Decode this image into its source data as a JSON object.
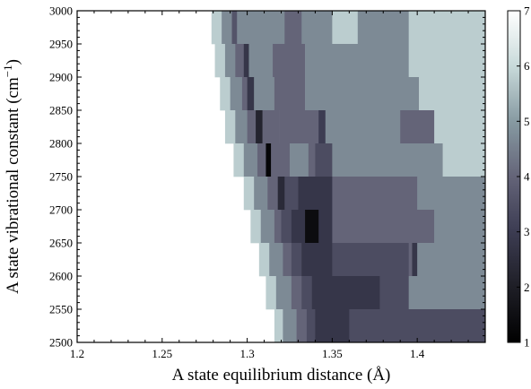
{
  "chart_data": {
    "type": "heatmap",
    "title": "",
    "xlabel": "A state equilibrium distance (Å)",
    "ylabel_text": "A state vibrational constant (cm",
    "ylabel_sup": "−1",
    "ylabel_close": ")",
    "xlim": [
      1.2,
      1.44
    ],
    "ylim": [
      2500,
      3000
    ],
    "x_ticks": [
      "1.2",
      "1.25",
      "1.3",
      "1.35",
      "1.4"
    ],
    "x_tick_values": [
      1.2,
      1.25,
      1.3,
      1.35,
      1.4
    ],
    "y_ticks": [
      "2500",
      "2550",
      "2600",
      "2650",
      "2700",
      "2750",
      "2800",
      "2850",
      "2900",
      "2950",
      "3000"
    ],
    "y_tick_values": [
      2500,
      2550,
      2600,
      2650,
      2700,
      2750,
      2800,
      2850,
      2900,
      2950,
      3000
    ],
    "colorbar": {
      "min": 1,
      "max": 7,
      "ticks": [
        "1",
        "2",
        "3",
        "4",
        "5",
        "6",
        "7"
      ],
      "tick_values": [
        1,
        2,
        3,
        4,
        5,
        6,
        7
      ]
    },
    "grid": false,
    "cells_note_columns": "each row: y-range [y0,y1] and list of [x0,x1,value] segments",
    "rows": [
      {
        "y": [
          2950,
          3000
        ],
        "segs": [
          [
            1.279,
            1.285,
            5.8
          ],
          [
            1.285,
            1.291,
            4.7
          ],
          [
            1.291,
            1.294,
            3.6
          ],
          [
            1.294,
            1.322,
            4.7
          ],
          [
            1.322,
            1.332,
            4.0
          ],
          [
            1.332,
            1.35,
            4.7
          ],
          [
            1.35,
            1.365,
            5.8
          ],
          [
            1.365,
            1.395,
            4.7
          ],
          [
            1.395,
            1.44,
            5.8
          ]
        ]
      },
      {
        "y": [
          2900,
          2950
        ],
        "segs": [
          [
            1.281,
            1.287,
            5.8
          ],
          [
            1.287,
            1.293,
            4.7
          ],
          [
            1.293,
            1.298,
            4.0
          ],
          [
            1.298,
            1.301,
            2.8
          ],
          [
            1.301,
            1.315,
            4.7
          ],
          [
            1.315,
            1.334,
            4.0
          ],
          [
            1.334,
            1.395,
            4.7
          ],
          [
            1.395,
            1.44,
            5.8
          ]
        ]
      },
      {
        "y": [
          2850,
          2900
        ],
        "segs": [
          [
            1.284,
            1.29,
            5.8
          ],
          [
            1.29,
            1.297,
            4.7
          ],
          [
            1.297,
            1.3,
            4.0
          ],
          [
            1.3,
            1.304,
            2.8
          ],
          [
            1.304,
            1.316,
            4.7
          ],
          [
            1.316,
            1.334,
            4.0
          ],
          [
            1.334,
            1.401,
            4.7
          ],
          [
            1.401,
            1.44,
            5.8
          ]
        ]
      },
      {
        "y": [
          2800,
          2850
        ],
        "segs": [
          [
            1.287,
            1.293,
            5.8
          ],
          [
            1.293,
            1.3,
            4.7
          ],
          [
            1.3,
            1.305,
            4.0
          ],
          [
            1.305,
            1.309,
            2.2
          ],
          [
            1.309,
            1.319,
            4.0
          ],
          [
            1.319,
            1.342,
            4.0
          ],
          [
            1.342,
            1.346,
            3.0
          ],
          [
            1.346,
            1.39,
            4.7
          ],
          [
            1.39,
            1.41,
            4.0
          ],
          [
            1.41,
            1.44,
            5.8
          ]
        ]
      },
      {
        "y": [
          2750,
          2800
        ],
        "segs": [
          [
            1.292,
            1.298,
            5.8
          ],
          [
            1.298,
            1.306,
            4.7
          ],
          [
            1.306,
            1.311,
            4.0
          ],
          [
            1.311,
            1.314,
            1.2
          ],
          [
            1.314,
            1.325,
            4.0
          ],
          [
            1.325,
            1.336,
            4.7
          ],
          [
            1.336,
            1.34,
            4.0
          ],
          [
            1.34,
            1.35,
            3.4
          ],
          [
            1.35,
            1.415,
            4.7
          ],
          [
            1.415,
            1.44,
            5.8
          ]
        ]
      },
      {
        "y": [
          2700,
          2750
        ],
        "segs": [
          [
            1.298,
            1.304,
            5.8
          ],
          [
            1.304,
            1.312,
            4.7
          ],
          [
            1.312,
            1.318,
            4.0
          ],
          [
            1.318,
            1.322,
            2.4
          ],
          [
            1.322,
            1.33,
            3.4
          ],
          [
            1.33,
            1.35,
            2.8
          ],
          [
            1.35,
            1.4,
            4.0
          ],
          [
            1.4,
            1.44,
            4.7
          ]
        ]
      },
      {
        "y": [
          2650,
          2700
        ],
        "segs": [
          [
            1.302,
            1.308,
            5.8
          ],
          [
            1.308,
            1.316,
            4.7
          ],
          [
            1.316,
            1.32,
            4.0
          ],
          [
            1.32,
            1.326,
            3.4
          ],
          [
            1.326,
            1.334,
            2.8
          ],
          [
            1.334,
            1.342,
            1.4
          ],
          [
            1.342,
            1.35,
            2.8
          ],
          [
            1.35,
            1.41,
            4.0
          ],
          [
            1.41,
            1.44,
            4.7
          ]
        ]
      },
      {
        "y": [
          2600,
          2650
        ],
        "segs": [
          [
            1.307,
            1.313,
            5.8
          ],
          [
            1.313,
            1.321,
            4.7
          ],
          [
            1.321,
            1.326,
            4.0
          ],
          [
            1.326,
            1.332,
            3.4
          ],
          [
            1.332,
            1.35,
            2.8
          ],
          [
            1.35,
            1.395,
            3.4
          ],
          [
            1.395,
            1.397,
            4.0
          ],
          [
            1.397,
            1.4,
            2.8
          ],
          [
            1.4,
            1.44,
            4.7
          ]
        ]
      },
      {
        "y": [
          2550,
          2600
        ],
        "segs": [
          [
            1.311,
            1.317,
            5.8
          ],
          [
            1.317,
            1.326,
            4.7
          ],
          [
            1.326,
            1.332,
            4.0
          ],
          [
            1.332,
            1.338,
            3.4
          ],
          [
            1.338,
            1.378,
            2.8
          ],
          [
            1.378,
            1.395,
            3.4
          ],
          [
            1.395,
            1.44,
            4.7
          ]
        ]
      },
      {
        "y": [
          2500,
          2550
        ],
        "segs": [
          [
            1.316,
            1.321,
            5.8
          ],
          [
            1.321,
            1.329,
            4.7
          ],
          [
            1.329,
            1.335,
            4.0
          ],
          [
            1.335,
            1.34,
            3.4
          ],
          [
            1.34,
            1.36,
            2.8
          ],
          [
            1.36,
            1.44,
            3.4
          ]
        ]
      }
    ]
  }
}
